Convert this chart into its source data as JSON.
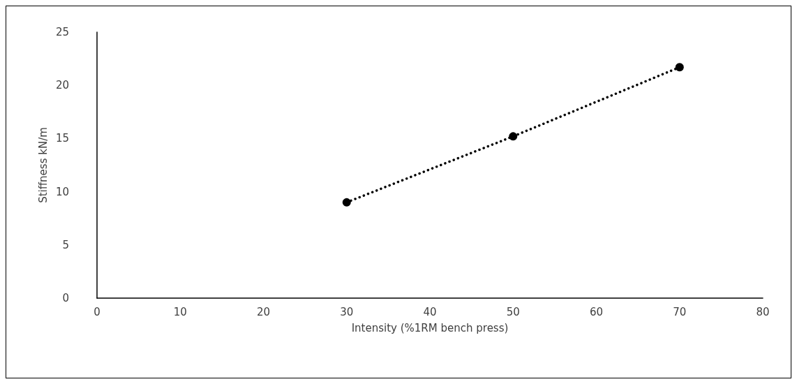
{
  "chart_data": {
    "type": "line",
    "xlabel": "Intensity (%1RM bench press)",
    "ylabel": "Stiffness kN/m",
    "x": [
      30,
      50,
      70
    ],
    "series": [
      {
        "color": "#000000",
        "values": [
          9.0,
          15.2,
          21.7
        ]
      }
    ],
    "marker": "circle",
    "line_style": "dotted",
    "grid": false,
    "xlim": [
      0,
      80
    ],
    "xticks": [
      0,
      10,
      20,
      30,
      40,
      50,
      60,
      70,
      80
    ],
    "ylim": [
      0,
      25
    ],
    "yticks": [
      0,
      5,
      10,
      15,
      20,
      25
    ]
  }
}
